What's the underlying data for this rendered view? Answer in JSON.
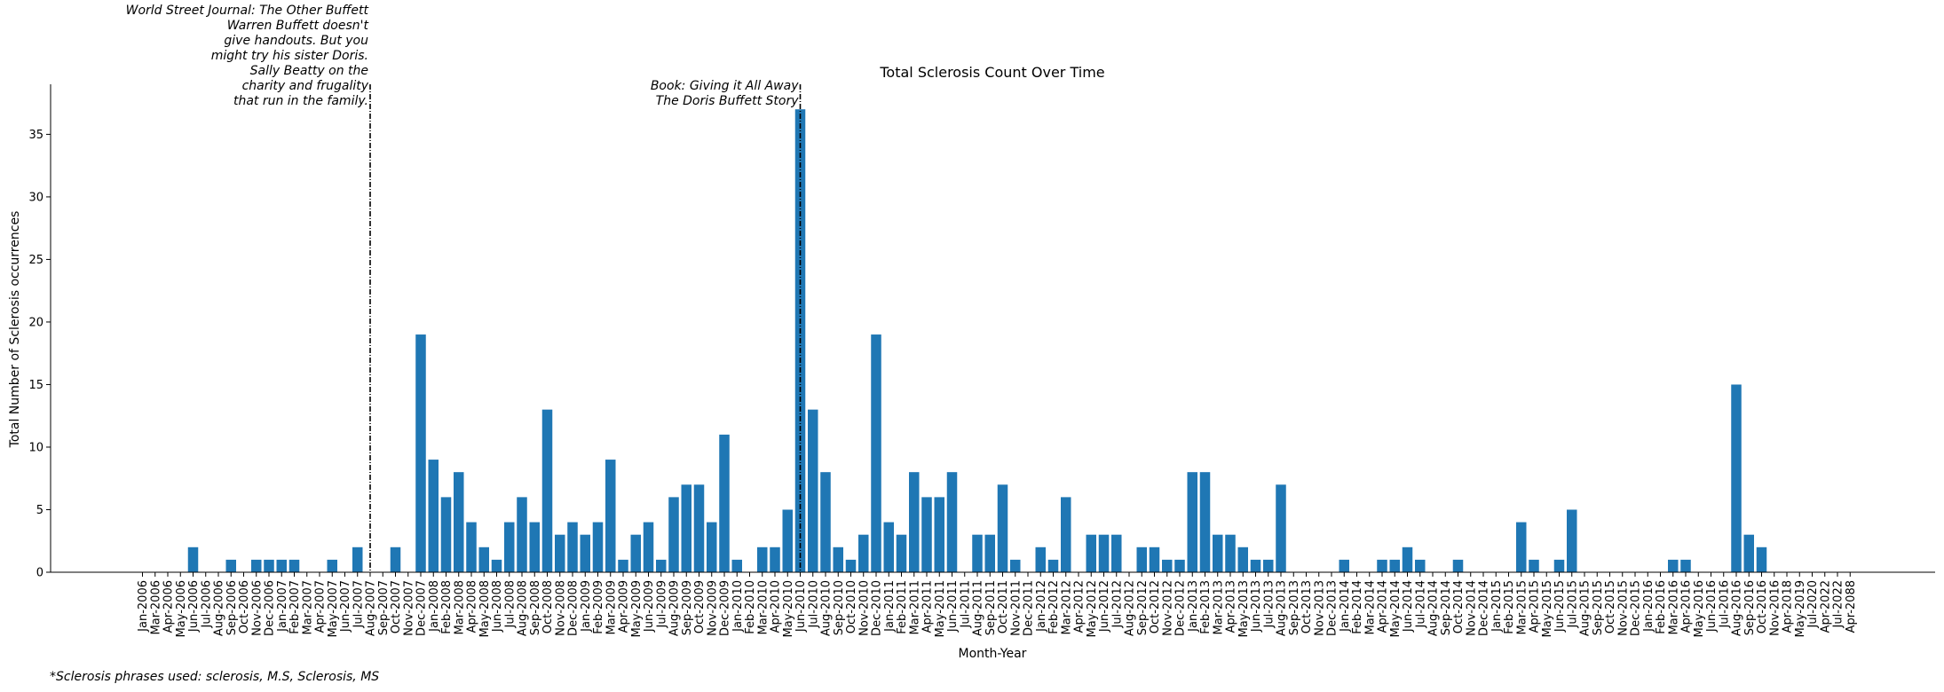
{
  "chart_data": {
    "type": "bar",
    "title": "Total Sclerosis Count Over Time",
    "xlabel": "Month-Year",
    "ylabel": "Total Number of Sclerosis occurrences",
    "ylim": [
      0,
      39
    ],
    "yticks": [
      0,
      5,
      10,
      15,
      20,
      25,
      30,
      35
    ],
    "grid": false,
    "bar_color": "#1f77b4",
    "categories": [
      "Jan-2006",
      "Mar-2006",
      "Apr-2006",
      "May-2006",
      "Jun-2006",
      "Jul-2006",
      "Aug-2006",
      "Sep-2006",
      "Oct-2006",
      "Nov-2006",
      "Dec-2006",
      "Jan-2007",
      "Feb-2007",
      "Mar-2007",
      "Apr-2007",
      "May-2007",
      "Jun-2007",
      "Jul-2007",
      "Aug-2007",
      "Sep-2007",
      "Oct-2007",
      "Nov-2007",
      "Dec-2007",
      "Jan-2008",
      "Feb-2008",
      "Mar-2008",
      "Apr-2008",
      "May-2008",
      "Jun-2008",
      "Jul-2008",
      "Aug-2008",
      "Sep-2008",
      "Oct-2008",
      "Nov-2008",
      "Dec-2008",
      "Jan-2009",
      "Feb-2009",
      "Mar-2009",
      "Apr-2009",
      "May-2009",
      "Jun-2009",
      "Jul-2009",
      "Aug-2009",
      "Sep-2009",
      "Oct-2009",
      "Nov-2009",
      "Dec-2009",
      "Jan-2010",
      "Feb-2010",
      "Mar-2010",
      "Apr-2010",
      "May-2010",
      "Jun-2010",
      "Jul-2010",
      "Aug-2010",
      "Sep-2010",
      "Oct-2010",
      "Nov-2010",
      "Dec-2010",
      "Jan-2011",
      "Feb-2011",
      "Mar-2011",
      "Apr-2011",
      "May-2011",
      "Jun-2011",
      "Jul-2011",
      "Aug-2011",
      "Sep-2011",
      "Oct-2011",
      "Nov-2011",
      "Dec-2011",
      "Jan-2012",
      "Feb-2012",
      "Mar-2012",
      "Apr-2012",
      "May-2012",
      "Jun-2012",
      "Jul-2012",
      "Aug-2012",
      "Sep-2012",
      "Oct-2012",
      "Nov-2012",
      "Dec-2012",
      "Jan-2013",
      "Feb-2013",
      "Mar-2013",
      "Apr-2013",
      "May-2013",
      "Jun-2013",
      "Jul-2013",
      "Aug-2013",
      "Sep-2013",
      "Oct-2013",
      "Nov-2013",
      "Dec-2013",
      "Jan-2014",
      "Feb-2014",
      "Mar-2014",
      "Apr-2014",
      "May-2014",
      "Jun-2014",
      "Jul-2014",
      "Aug-2014",
      "Sep-2014",
      "Oct-2014",
      "Nov-2014",
      "Dec-2014",
      "Jan-2015",
      "Feb-2015",
      "Mar-2015",
      "Apr-2015",
      "May-2015",
      "Jun-2015",
      "Jul-2015",
      "Aug-2015",
      "Sep-2015",
      "Oct-2015",
      "Nov-2015",
      "Dec-2015",
      "Jan-2016",
      "Feb-2016",
      "Mar-2016",
      "Apr-2016",
      "May-2016",
      "Jun-2016",
      "Jul-2016",
      "Aug-2016",
      "Sep-2016",
      "Oct-2016",
      "Nov-2016",
      "Apr-2018",
      "May-2019",
      "Jul-2020",
      "Apr-2022",
      "Jul-2022",
      "Apr-2088"
    ],
    "values": [
      0,
      0,
      0,
      0,
      2,
      0,
      0,
      1,
      0,
      1,
      1,
      1,
      1,
      0,
      0,
      1,
      0,
      2,
      0,
      0,
      2,
      0,
      19,
      9,
      6,
      8,
      4,
      2,
      1,
      4,
      6,
      4,
      13,
      3,
      4,
      3,
      4,
      9,
      1,
      3,
      4,
      1,
      6,
      7,
      7,
      4,
      11,
      1,
      0,
      2,
      2,
      5,
      37,
      13,
      8,
      2,
      1,
      3,
      19,
      4,
      3,
      8,
      6,
      6,
      8,
      0,
      3,
      3,
      7,
      1,
      0,
      2,
      1,
      6,
      0,
      3,
      3,
      3,
      0,
      2,
      2,
      1,
      1,
      8,
      8,
      3,
      3,
      2,
      1,
      1,
      7,
      0,
      0,
      0,
      0,
      1,
      0,
      0,
      1,
      1,
      2,
      1,
      0,
      0,
      1,
      0,
      0,
      0,
      0,
      4,
      1,
      0,
      1,
      5,
      0,
      0,
      0,
      0,
      0,
      0,
      0,
      1,
      1,
      0,
      0,
      0,
      15,
      3,
      2,
      0,
      0,
      0,
      0,
      0,
      0,
      0
    ],
    "annotations": [
      {
        "category": "Aug-2007",
        "lines": [
          "World Street Journal: The Other Buffett",
          "Warren Buffett doesn't",
          "give handouts. But you",
          "might try his sister Doris.",
          "Sally Beatty on the",
          "charity and frugality",
          "that run in the family."
        ]
      },
      {
        "category": "Jun-2010",
        "lines": [
          "Book: Giving it All Away",
          "The Doris Buffett Story"
        ]
      }
    ],
    "footnote": "*Sclerosis phrases used: sclerosis, M.S, Sclerosis, MS"
  }
}
